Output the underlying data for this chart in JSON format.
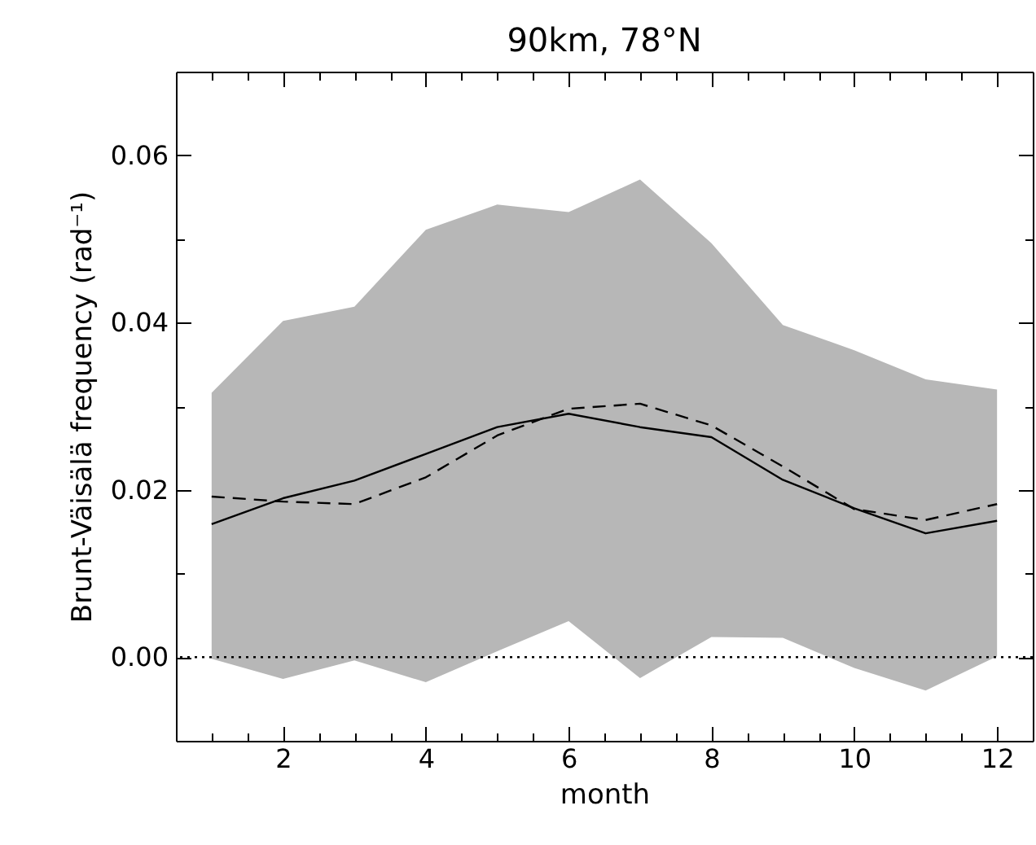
{
  "chart_data": {
    "type": "line",
    "title": "90km, 78°N",
    "xlabel": "month",
    "ylabel": "Brunt-Väisälä frequency (rad⁻¹)",
    "x": [
      1,
      2,
      3,
      4,
      5,
      6,
      7,
      8,
      9,
      10,
      11,
      12
    ],
    "xlim": [
      0.5,
      12.5
    ],
    "xticks": [
      {
        "value": 1,
        "label": null
      },
      {
        "value": 1.5,
        "label": null
      },
      2,
      {
        "value": 2.5,
        "label": null
      },
      {
        "value": 3,
        "label": null
      },
      {
        "value": 3.5,
        "label": null
      },
      4,
      {
        "value": 4.5,
        "label": null
      },
      {
        "value": 5,
        "label": null
      },
      {
        "value": 5.5,
        "label": null
      },
      6,
      {
        "value": 6.5,
        "label": null
      },
      {
        "value": 7,
        "label": null
      },
      {
        "value": 7.5,
        "label": null
      },
      8,
      {
        "value": 8.5,
        "label": null
      },
      {
        "value": 9,
        "label": null
      },
      {
        "value": 9.5,
        "label": null
      },
      10,
      {
        "value": 10.5,
        "label": null
      },
      {
        "value": 11,
        "label": null
      },
      {
        "value": 11.5,
        "label": null
      },
      12
    ],
    "ylim": [
      -0.01,
      0.07
    ],
    "yticks": [
      {
        "value": -0.01,
        "label": null
      },
      {
        "value": 0,
        "label": "0.00"
      },
      {
        "value": 0.01,
        "label": null
      },
      {
        "value": 0.02,
        "label": "0.02"
      },
      {
        "value": 0.03,
        "label": null
      },
      {
        "value": 0.04,
        "label": "0.04"
      },
      {
        "value": 0.05,
        "label": null
      },
      {
        "value": 0.06,
        "label": "0.06"
      }
    ],
    "grid": false,
    "series": [
      {
        "color": "#b7b7b7",
        "values": [
          null,
          null,
          null,
          null,
          null,
          null,
          null,
          null,
          null,
          null,
          null,
          null
        ],
        "lower": [
          -0.0002,
          -0.0026,
          -0.0004,
          -0.003,
          0.0007,
          0.0043,
          -0.0025,
          0.0024,
          0.0023,
          -0.0013,
          -0.004,
          0.0001
        ],
        "upper": [
          0.0316,
          0.0402,
          0.0419,
          0.0511,
          0.0541,
          0.0532,
          0.0571,
          0.0495,
          0.0397,
          0.0367,
          0.0332,
          0.032
        ]
      },
      {
        "color": "#000000",
        "line_style": "solid",
        "values": [
          0.0159,
          0.019,
          0.0211,
          0.0243,
          0.0275,
          0.0291,
          0.0275,
          0.0263,
          0.0212,
          0.0178,
          0.0148,
          0.0163
        ]
      },
      {
        "color": "#000000",
        "line_style": "dashed",
        "values": [
          0.0192,
          0.0186,
          0.0183,
          0.0215,
          0.0265,
          0.0297,
          0.0303,
          0.0277,
          0.0228,
          0.0177,
          0.0164,
          0.0183
        ]
      }
    ],
    "ref_lines": [
      {
        "axis": "y",
        "value": 0,
        "label": null,
        "color": "#000000",
        "line_style": "dotted"
      }
    ]
  }
}
